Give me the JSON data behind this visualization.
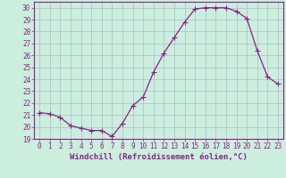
{
  "x": [
    0,
    1,
    2,
    3,
    4,
    5,
    6,
    7,
    8,
    9,
    10,
    11,
    12,
    13,
    14,
    15,
    16,
    17,
    18,
    19,
    20,
    21,
    22,
    23
  ],
  "y": [
    21.2,
    21.1,
    20.8,
    20.1,
    19.9,
    19.7,
    19.7,
    19.2,
    20.3,
    21.8,
    22.5,
    24.6,
    26.2,
    27.5,
    28.8,
    29.9,
    30.0,
    30.0,
    30.0,
    29.7,
    29.1,
    26.4,
    24.2,
    23.6
  ],
  "line_color": "#882288",
  "marker": "+",
  "marker_size": 4,
  "bg_color": "#cceedd",
  "grid_color": "#aabbcc",
  "xlabel": "Windchill (Refroidissement éolien,°C)",
  "xlim": [
    -0.5,
    23.5
  ],
  "ylim": [
    19.0,
    30.5
  ],
  "yticks": [
    19,
    20,
    21,
    22,
    23,
    24,
    25,
    26,
    27,
    28,
    29,
    30
  ],
  "xticks": [
    0,
    1,
    2,
    3,
    4,
    5,
    6,
    7,
    8,
    9,
    10,
    11,
    12,
    13,
    14,
    15,
    16,
    17,
    18,
    19,
    20,
    21,
    22,
    23
  ],
  "tick_color": "#882288",
  "tick_fontsize": 5.5,
  "xlabel_fontsize": 6.5,
  "linewidth": 0.9
}
